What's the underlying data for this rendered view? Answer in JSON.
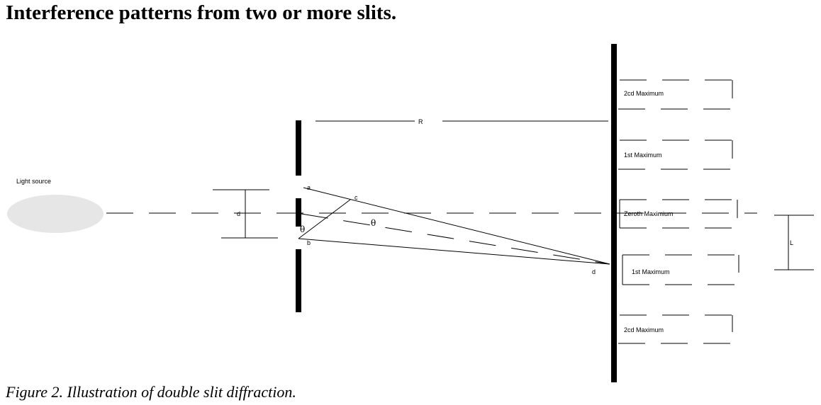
{
  "title": "Interference patterns from two or more slits.",
  "caption": "Figure 2. Illustration of double slit diffraction.",
  "labels": {
    "light_source": "Light source",
    "slit_separation": "d",
    "distance": "R",
    "point_a": "a",
    "point_b": "b",
    "point_c": "c",
    "point_d": "d",
    "theta": "θ",
    "fringe_spacing": "L"
  },
  "maxima": [
    "2cd Maximum",
    "1st Maximum",
    "Zeroth Maximium",
    "1st Maximum",
    "2cd Maximum"
  ],
  "colors": {
    "light_source": "#e6e6e6",
    "ink": "#000000"
  }
}
